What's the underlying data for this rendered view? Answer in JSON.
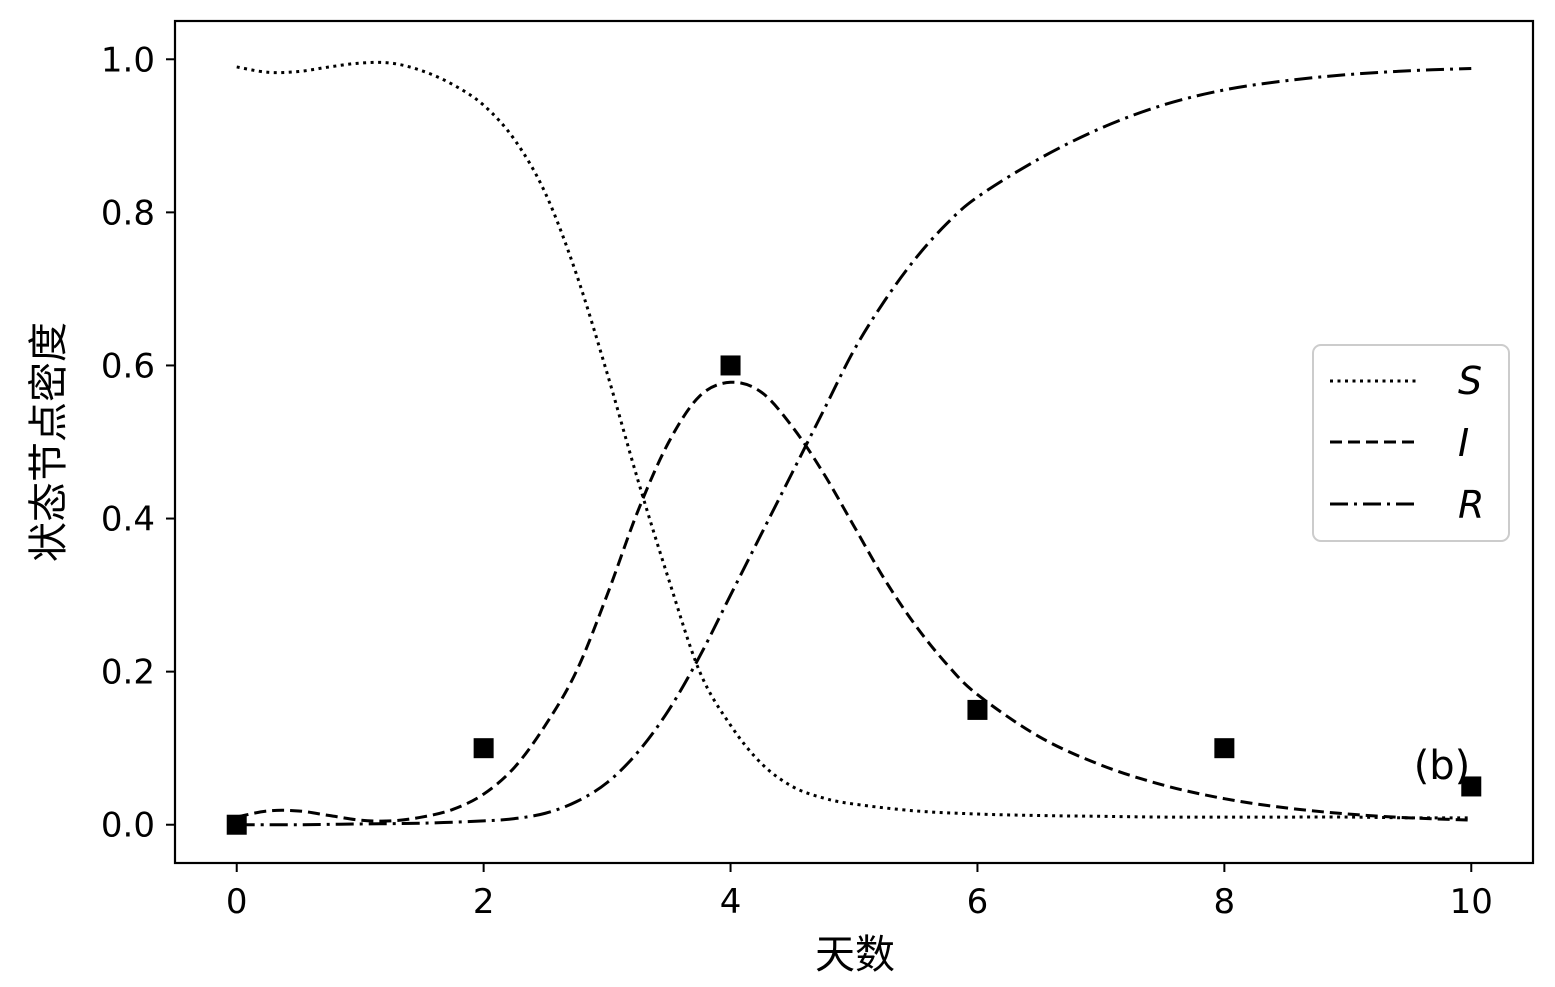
{
  "chart_data": {
    "type": "line",
    "title": "",
    "xlabel": "天数",
    "ylabel": "状态节点密度",
    "xlim": [
      -0.5,
      10.5
    ],
    "ylim": [
      -0.05,
      1.05
    ],
    "xticks": [
      0,
      2,
      4,
      6,
      8,
      10
    ],
    "yticks": [
      0.0,
      0.2,
      0.4,
      0.6,
      0.8,
      1.0
    ],
    "xtick_labels": [
      "0",
      "2",
      "4",
      "6",
      "8",
      "10"
    ],
    "ytick_labels": [
      "0.0",
      "0.2",
      "0.4",
      "0.6",
      "0.8",
      "1.0"
    ],
    "grid": false,
    "legend_position": "right",
    "annotation": "(b)",
    "series": [
      {
        "name": "S",
        "style": "dotted",
        "x": [
          0,
          0.25,
          0.5,
          0.75,
          1,
          1.25,
          1.5,
          1.75,
          2,
          2.25,
          2.5,
          2.75,
          3,
          3.25,
          3.5,
          3.75,
          4,
          4.25,
          4.5,
          4.75,
          5,
          5.5,
          6,
          6.5,
          7,
          7.5,
          8,
          8.5,
          9,
          9.5,
          10
        ],
        "y": [
          0.99,
          0.983,
          0.984,
          0.99,
          0.995,
          0.995,
          0.985,
          0.967,
          0.94,
          0.895,
          0.825,
          0.72,
          0.59,
          0.45,
          0.32,
          0.2,
          0.13,
          0.08,
          0.05,
          0.035,
          0.027,
          0.018,
          0.014,
          0.012,
          0.011,
          0.01,
          0.01,
          0.01,
          0.01,
          0.009,
          0.009
        ]
      },
      {
        "name": "I",
        "style": "dashed",
        "x": [
          0,
          0.25,
          0.5,
          0.75,
          1,
          1.25,
          1.5,
          1.75,
          2,
          2.25,
          2.5,
          2.75,
          3,
          3.25,
          3.5,
          3.75,
          4,
          4.25,
          4.5,
          4.75,
          5,
          5.25,
          5.5,
          5.75,
          6,
          6.5,
          7,
          7.5,
          8,
          8.5,
          9,
          9.5,
          10
        ],
        "y": [
          0.01,
          0.018,
          0.018,
          0.012,
          0.006,
          0.005,
          0.01,
          0.02,
          0.04,
          0.075,
          0.13,
          0.2,
          0.3,
          0.41,
          0.5,
          0.56,
          0.578,
          0.565,
          0.52,
          0.46,
          0.39,
          0.32,
          0.26,
          0.21,
          0.17,
          0.115,
          0.078,
          0.052,
          0.034,
          0.022,
          0.014,
          0.009,
          0.006
        ]
      },
      {
        "name": "R",
        "style": "dashdot",
        "x": [
          0,
          0.5,
          1,
          1.5,
          2,
          2.25,
          2.5,
          2.75,
          3,
          3.25,
          3.5,
          3.75,
          4,
          4.25,
          4.5,
          4.75,
          5,
          5.25,
          5.5,
          5.75,
          6,
          6.5,
          7,
          7.5,
          8,
          8.5,
          9,
          9.5,
          10
        ],
        "y": [
          0,
          0,
          0.001,
          0.002,
          0.005,
          0.008,
          0.015,
          0.03,
          0.055,
          0.095,
          0.15,
          0.22,
          0.3,
          0.38,
          0.46,
          0.54,
          0.62,
          0.685,
          0.74,
          0.785,
          0.82,
          0.87,
          0.91,
          0.94,
          0.96,
          0.972,
          0.98,
          0.985,
          0.988
        ]
      }
    ],
    "markers": {
      "style": "square",
      "x": [
        0,
        2,
        4,
        6,
        8,
        10
      ],
      "y": [
        0.0,
        0.1,
        0.6,
        0.15,
        0.1,
        0.05
      ]
    }
  }
}
